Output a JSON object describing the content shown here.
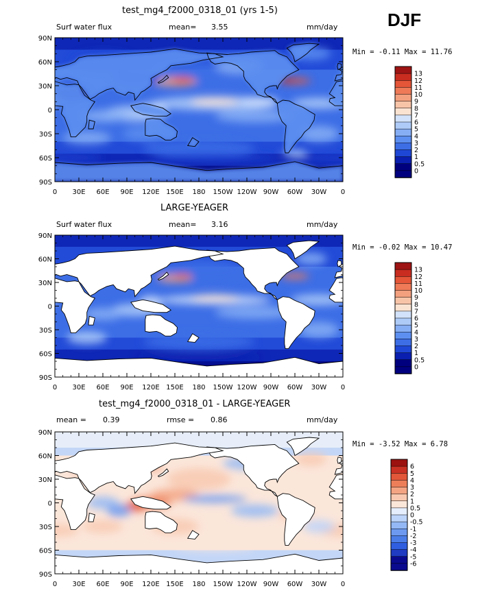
{
  "header": {
    "season": "DJF"
  },
  "palette_abs": [
    "#00007f",
    "#0a1fb0",
    "#1f47d6",
    "#3d6ee6",
    "#5d8ff0",
    "#86aef5",
    "#aecbf8",
    "#d2e2fa",
    "#fbe3d2",
    "#f8c4a8",
    "#f3a07f",
    "#ee7a58",
    "#e55538",
    "#c92d20",
    "#9e1414"
  ],
  "palette_diff": [
    "#0a0a8f",
    "#1f3cc2",
    "#2f5fe0",
    "#4b7de8",
    "#6d9af0",
    "#94b8f5",
    "#bdd4fa",
    "#e4eefc",
    "#fbe6da",
    "#f8c9b0",
    "#f3a583",
    "#ec7f5a",
    "#e2573a",
    "#c83123",
    "#9b1210"
  ],
  "x_ticks": [
    "0",
    "30E",
    "60E",
    "90E",
    "120E",
    "150E",
    "180",
    "150W",
    "120W",
    "90W",
    "60W",
    "30W",
    "0"
  ],
  "y_ticks": [
    "90N",
    "60N",
    "30N",
    "0",
    "30S",
    "60S",
    "90S"
  ],
  "panels": [
    {
      "title": "test_mg4_f2000_0318_01 (yrs 1-5)",
      "left_label": "Surf water flux",
      "mid_label": "mean=",
      "mid_value": "3.55",
      "units": "mm/day",
      "minmax_text": "Min =  -0.11 Max =  11.76",
      "colorbar_labels": [
        "13",
        "12",
        "11",
        "10",
        "9",
        "8",
        "7",
        "6",
        "5",
        "4",
        "3",
        "2",
        "1",
        "0.5",
        "0"
      ]
    },
    {
      "title": "LARGE-YEAGER",
      "left_label": "Surf water flux",
      "mid_label": "mean=",
      "mid_value": "3.16",
      "units": "mm/day",
      "minmax_text": "Min =  -0.02 Max =  10.47",
      "colorbar_labels": [
        "13",
        "12",
        "11",
        "10",
        "9",
        "8",
        "7",
        "6",
        "5",
        "4",
        "3",
        "2",
        "1",
        "0.5",
        "0"
      ]
    },
    {
      "title": "test_mg4_f2000_0318_01 - LARGE-YEAGER",
      "left_label": "mean =",
      "left_value": "0.39",
      "mid_label": "rmse =",
      "mid_value": "0.86",
      "units": "mm/day",
      "minmax_text": "Min =  -3.52 Max =   6.78",
      "colorbar_labels": [
        "6",
        "5",
        "4",
        "3",
        "2",
        "1",
        "0.5",
        "0",
        "-0.5",
        "-1",
        "-2",
        "-3",
        "-4",
        "-5",
        "-6"
      ]
    }
  ],
  "chart_data": [
    {
      "type": "heatmap",
      "title": "test_mg4_f2000_0318_01 (yrs 1-5)",
      "variable": "Surf water flux",
      "units": "mm/day",
      "mean": 3.55,
      "min": -0.11,
      "max": 11.76,
      "levels": [
        0,
        0.5,
        1,
        2,
        3,
        4,
        5,
        6,
        7,
        8,
        9,
        10,
        11,
        12,
        13
      ],
      "x_range": [
        "0",
        "0"
      ],
      "y_range": [
        "90S",
        "90N"
      ]
    },
    {
      "type": "heatmap",
      "title": "LARGE-YEAGER",
      "variable": "Surf water flux",
      "units": "mm/day",
      "mean": 3.16,
      "min": -0.02,
      "max": 10.47,
      "levels": [
        0,
        0.5,
        1,
        2,
        3,
        4,
        5,
        6,
        7,
        8,
        9,
        10,
        11,
        12,
        13
      ],
      "x_range": [
        "0",
        "0"
      ],
      "y_range": [
        "90S",
        "90N"
      ]
    },
    {
      "type": "heatmap",
      "title": "test_mg4_f2000_0318_01 - LARGE-YEAGER",
      "units": "mm/day",
      "mean": 0.39,
      "rmse": 0.86,
      "min": -3.52,
      "max": 6.78,
      "levels": [
        -6,
        -5,
        -4,
        -3,
        -2,
        -1,
        -0.5,
        0,
        0.5,
        1,
        2,
        3,
        4,
        5,
        6
      ],
      "x_range": [
        "0",
        "0"
      ],
      "y_range": [
        "90S",
        "90N"
      ]
    }
  ]
}
